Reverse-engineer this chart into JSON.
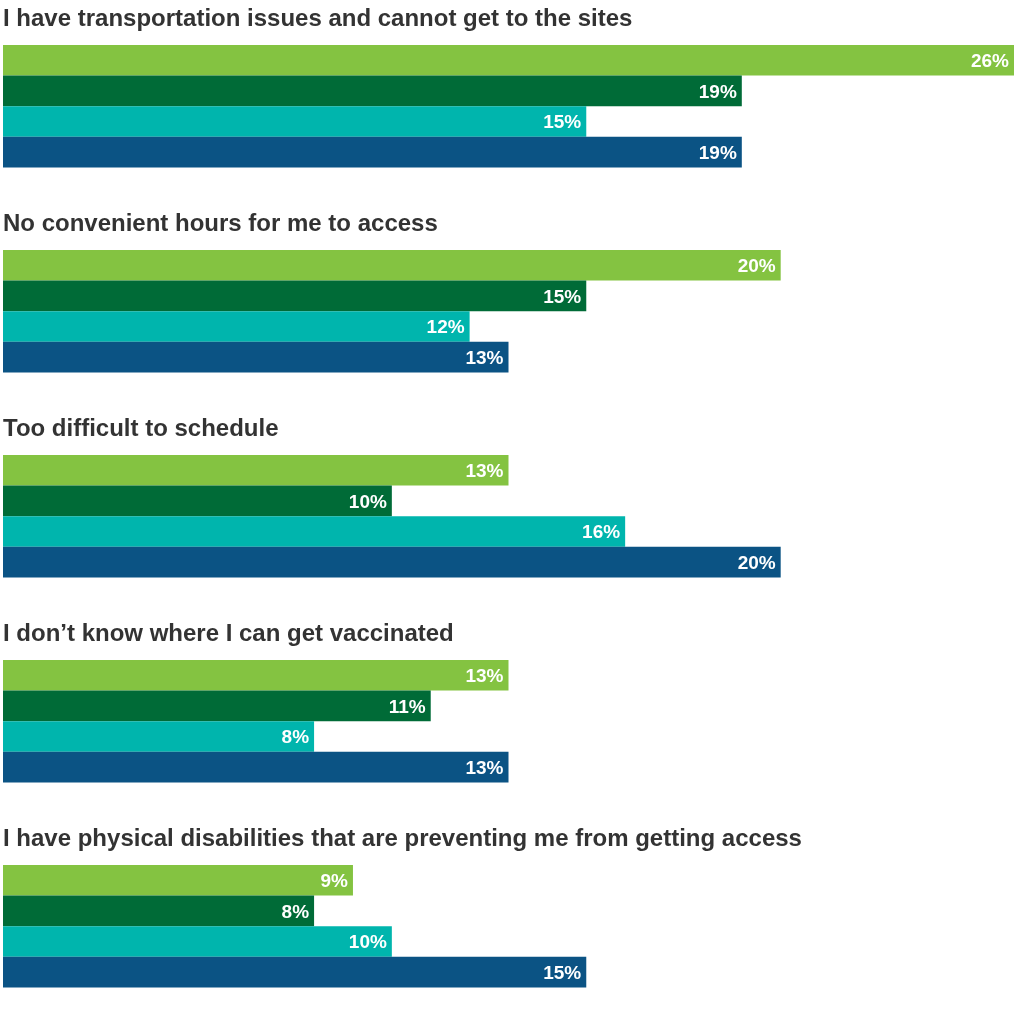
{
  "chart_data": {
    "type": "bar",
    "orientation": "horizontal",
    "categories": [
      "I have transportation issues and cannot get to the sites",
      "No convenient hours for me to access",
      "Too difficult to schedule",
      "I don’t know where I can get vaccinated",
      "I have physical disabilities that are preventing me from getting access"
    ],
    "series": [
      {
        "color": "#84c341",
        "values": [
          26,
          20,
          13,
          13,
          9
        ],
        "value_labels": [
          "26%",
          "20%",
          "13%",
          "13%",
          "9%"
        ]
      },
      {
        "color": "#006b37",
        "values": [
          19,
          15,
          10,
          11,
          8
        ],
        "value_labels": [
          "19%",
          "15%",
          "10%",
          "11%",
          "8%"
        ]
      },
      {
        "color": "#00b5ad",
        "values": [
          15,
          12,
          16,
          8,
          10
        ],
        "value_labels": [
          "15%",
          "12%",
          "16%",
          "8%",
          "10%"
        ]
      },
      {
        "color": "#0b5384",
        "values": [
          19,
          13,
          20,
          13,
          15
        ],
        "value_labels": [
          "19%",
          "13%",
          "20%",
          "13%",
          "15%"
        ]
      }
    ],
    "legend": false,
    "grid": false
  }
}
